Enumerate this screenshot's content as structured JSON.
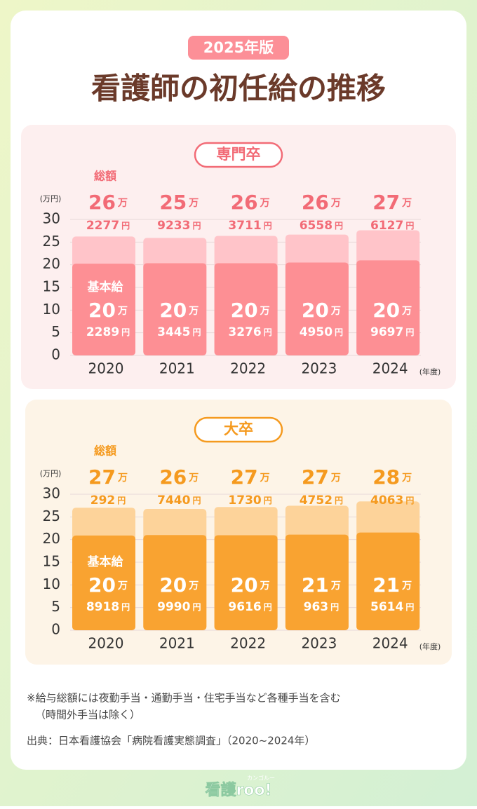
{
  "badge": "2025年版",
  "title": "看護師の初任給の推移",
  "chart_data": [
    {
      "type": "bar",
      "title": "専門卒",
      "y_unit": "(万円)",
      "x_unit": "(年度)",
      "categories": [
        "2020",
        "2021",
        "2022",
        "2023",
        "2024"
      ],
      "ylim": [
        0,
        30
      ],
      "yticks": [
        0,
        5,
        10,
        15,
        20,
        25,
        30
      ],
      "grid": true,
      "text_color": "#f26b76",
      "series": [
        {
          "name": "総額",
          "color": "#ffc4c9",
          "values": [
            26.2277,
            25.9233,
            26.3711,
            26.6558,
            27.6127
          ],
          "value_labels": [
            "26万2277円",
            "25万9233円",
            "26万3711円",
            "26万6558円",
            "27万6127円"
          ]
        },
        {
          "name": "基本給",
          "color": "#fd8f94",
          "values": [
            20.2289,
            20.3445,
            20.3276,
            20.495,
            20.9697
          ],
          "value_labels": [
            "20万2289円",
            "20万3445円",
            "20万3276円",
            "20万4950円",
            "20万9697円"
          ]
        }
      ]
    },
    {
      "type": "bar",
      "title": "大卒",
      "y_unit": "(万円)",
      "x_unit": "(年度)",
      "categories": [
        "2020",
        "2021",
        "2022",
        "2023",
        "2024"
      ],
      "ylim": [
        0,
        30
      ],
      "yticks": [
        0,
        5,
        10,
        15,
        20,
        25,
        30
      ],
      "grid": true,
      "text_color": "#f59a1f",
      "series": [
        {
          "name": "総額",
          "color": "#fdd39a",
          "values": [
            27.0292,
            26.744,
            27.173,
            27.4752,
            28.4063
          ],
          "value_labels": [
            "27万292円",
            "26万7440円",
            "27万1730円",
            "27万4752円",
            "28万4063円"
          ]
        },
        {
          "name": "基本給",
          "color": "#f9a331",
          "values": [
            20.8918,
            20.999,
            20.9616,
            21.0963,
            21.5614
          ],
          "value_labels": [
            "20万8918円",
            "20万9990円",
            "20万9616円",
            "21万963円",
            "21万5614円"
          ]
        }
      ]
    }
  ],
  "notes": [
    "※給与総額には夜勤手当・通勤手当・住宅手当など各種手当を含む",
    "（時間外手当は除く）"
  ],
  "source": "出典：日本看護協会「病院看護実態調査」（2020~2024年）",
  "logo": "看護roo!",
  "logo_sub": "カンゴルー"
}
